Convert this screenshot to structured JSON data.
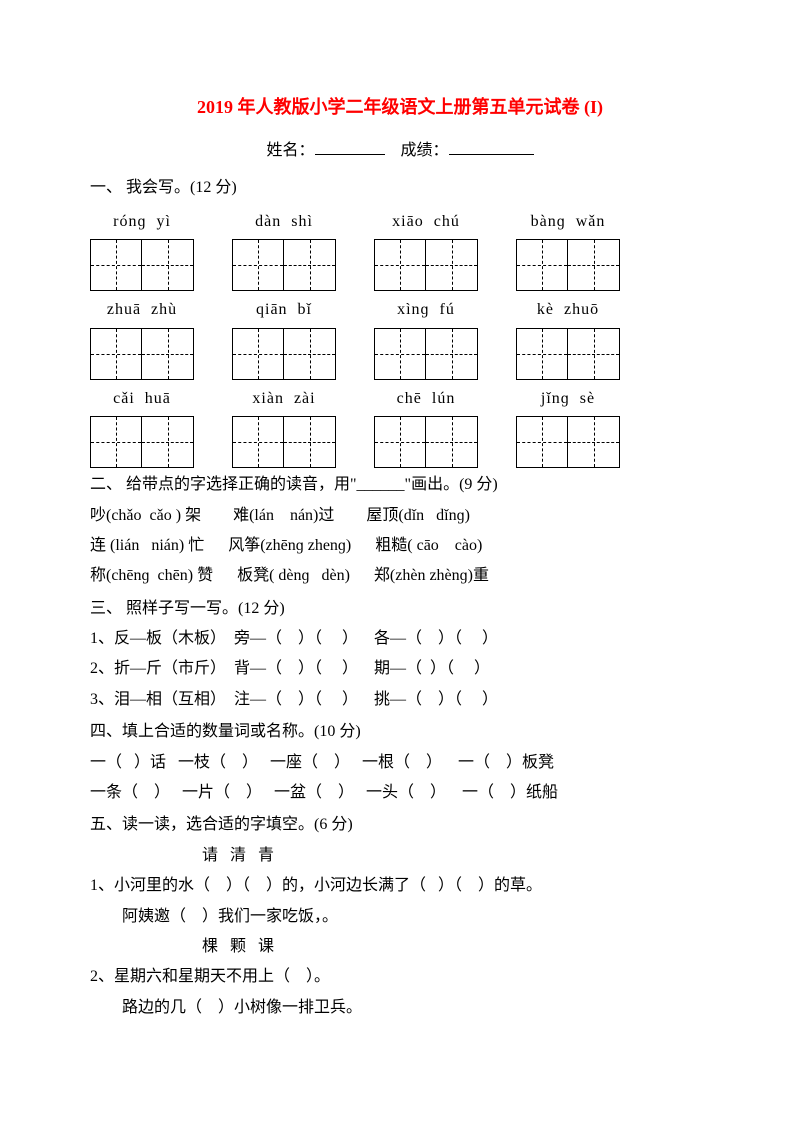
{
  "title": "2019 年人教版小学二年级语文上册第五单元试卷 (I)",
  "header": {
    "name_label": "姓名：",
    "score_label": "成绩："
  },
  "section1": {
    "heading": "一、 我会写。(12 分)",
    "rows": [
      [
        {
          "p1": "rónɡ",
          "p2": "yì"
        },
        {
          "p1": "dàn",
          "p2": "shì"
        },
        {
          "p1": "xiāo",
          "p2": "chú"
        },
        {
          "p1": "bànɡ",
          "p2": "wǎn"
        }
      ],
      [
        {
          "p1": "zhuā",
          "p2": "zhù"
        },
        {
          "p1": "qiān",
          "p2": "bǐ"
        },
        {
          "p1": "xìnɡ",
          "p2": "fú"
        },
        {
          "p1": "kè",
          "p2": "zhuō"
        }
      ],
      [
        {
          "p1": "cǎi",
          "p2": "huā"
        },
        {
          "p1": "xiàn",
          "p2": "zài"
        },
        {
          "p1": "chē",
          "p2": "lún"
        },
        {
          "p1": "jǐnɡ",
          "p2": "sè"
        }
      ]
    ]
  },
  "section2": {
    "heading": "二、 给带点的字选择正确的读音，用\"______\"画出。(9 分)",
    "lines": [
      "吵(chǎo  cǎo ) 架        难(lán    nán)过        屋顶(dǐn   dǐnɡ)",
      "连 (lián   nián) 忙      风筝(zhēnɡ zhenɡ)      粗糙( cāo    cào)",
      "称(chēnɡ  chēn) 赞      板凳( dènɡ   dèn)      郑(zhèn zhènɡ)重"
    ]
  },
  "section3": {
    "heading": "三、 照样子写一写。(12 分)",
    "lines": [
      "1、反—板（木板）  旁—（    ）（     ）    各—（    ）（     ）",
      "2、折—斤（市斤）  背—（    ）（     ）    期—（  ）（     ）",
      "3、泪—相（互相）  注—（    ）（     ）    挑—（    ）（     ）"
    ]
  },
  "section4": {
    "heading": "四、填上合适的数量词或名称。(10 分)",
    "lines": [
      "一（   ）话   一枝（    ）   一座（    ）   一根（    ）    一（    ）板凳",
      "一条（    ）   一片（    ）   一盆（    ）   一头（    ）    一（    ）纸船"
    ]
  },
  "section5": {
    "heading": "五、读一读，选合适的字填空。(6 分)",
    "group1_chars": "请      清      青",
    "group1_lines": [
      "1、小河里的水（    ）（    ）的，小河边长满了（   ）（    ）的草。",
      "阿姨邀（    ）我们一家吃饭，。"
    ],
    "group2_chars": "棵      颗      课",
    "group2_lines": [
      "2、星期六和星期天不用上（    ）。",
      "路边的几（    ）小树像一排卫兵。"
    ]
  }
}
